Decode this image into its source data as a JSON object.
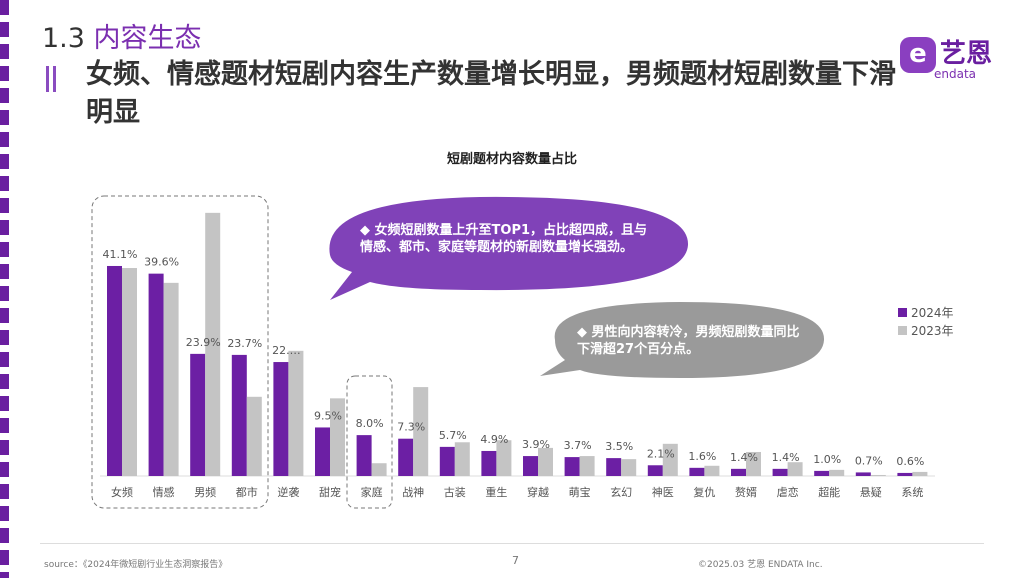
{
  "section": {
    "number": "1.3",
    "title": "内容生态"
  },
  "headline": "女频、情感题材短剧内容生产数量增长明显，男频题材短剧数量下滑明显",
  "logo": {
    "mark": "e",
    "cn": "艺恩",
    "en": "endata"
  },
  "colors": {
    "accent": "#6a1fa0",
    "y2024": "#6c1fa4",
    "y2023": "#c4c4c4",
    "callout_purple": "#8042b8",
    "callout_gray": "#9a9a9a"
  },
  "callouts": {
    "purple": "◆  女频短剧数量上升至TOP1，占比超四成，且与情感、都市、家庭等题材的新剧数量增长强劲。",
    "gray": "◆  男性向内容转冷，男频短剧数量同比下滑超27个百分点。"
  },
  "chart_data": {
    "type": "bar",
    "title": "短剧题材内容数量占比",
    "categories": [
      "女频",
      "情感",
      "男频",
      "都市",
      "逆袭",
      "甜宠",
      "家庭",
      "战神",
      "古装",
      "重生",
      "穿越",
      "萌宝",
      "玄幻",
      "神医",
      "复仇",
      "赘婿",
      "虐恋",
      "超能",
      "悬疑",
      "系统"
    ],
    "series": [
      {
        "name": "2024年",
        "values": [
          41.1,
          39.6,
          23.9,
          23.7,
          22.3,
          9.5,
          8.0,
          7.3,
          5.7,
          4.9,
          3.9,
          3.7,
          3.5,
          2.1,
          1.6,
          1.4,
          1.4,
          1.0,
          0.7,
          0.6
        ],
        "labels": [
          "41.1%",
          "39.6%",
          "23.9%",
          "23.7%",
          "22.…",
          "9.5%",
          "8.0%",
          "7.3%",
          "5.7%",
          "4.9%",
          "3.9%",
          "3.7%",
          "3.5%",
          "2.1%",
          "1.6%",
          "1.4%",
          "1.4%",
          "1.0%",
          "0.7%",
          "0.6%"
        ]
      },
      {
        "name": "2023年",
        "values": [
          40.7,
          37.8,
          51.5,
          15.5,
          24.5,
          15.2,
          2.5,
          17.4,
          6.6,
          7.0,
          5.5,
          3.9,
          3.3,
          6.3,
          2.0,
          4.7,
          2.7,
          1.2,
          0.2,
          0.8
        ]
      }
    ],
    "highlighted_groups": [
      [
        "女频",
        "男频",
        "情感",
        "都市"
      ],
      [
        "家庭"
      ]
    ],
    "legend": "right",
    "grid": false
  },
  "footer": {
    "source": "source：《2024年微短剧行业生态洞察报告》",
    "page": "7",
    "copyright": "©2025.03 艺恩 ENDATA Inc."
  }
}
